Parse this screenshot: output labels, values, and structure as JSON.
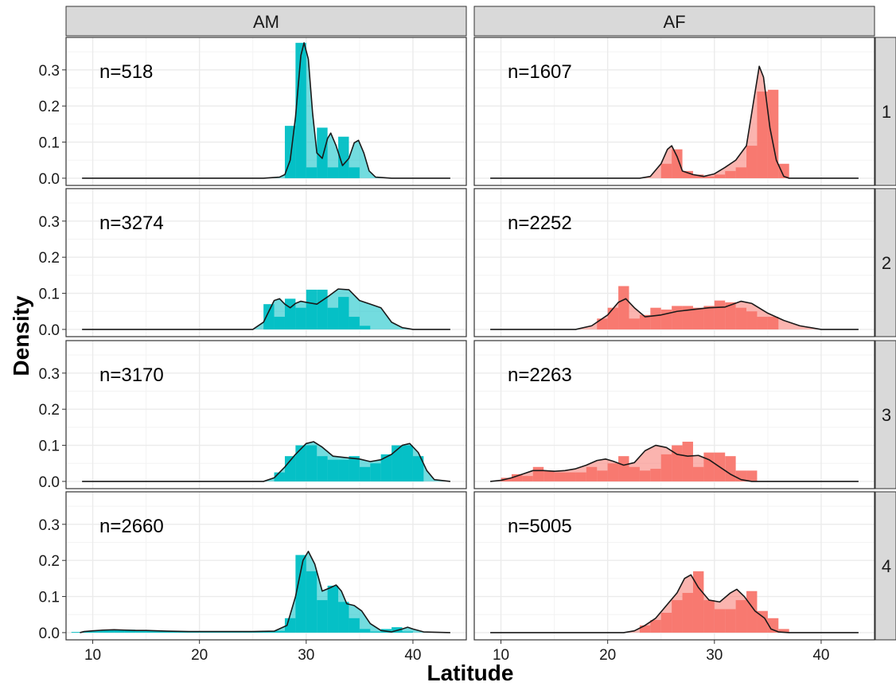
{
  "chart_data": {
    "type": "faceted-histogram-density",
    "xlabel": "Latitude",
    "ylabel": "Density",
    "xlim": [
      7.5,
      45
    ],
    "ylim": [
      -0.02,
      0.39
    ],
    "x_ticks": [
      10,
      20,
      30,
      40
    ],
    "y_ticks": [
      0.0,
      0.1,
      0.2,
      0.3
    ],
    "y_tick_labels": [
      "0.0",
      "0.1",
      "0.2",
      "0.3"
    ],
    "grid": true,
    "bin_width": 1,
    "columns": [
      "AM",
      "AF"
    ],
    "rows": [
      "1",
      "2",
      "3",
      "4"
    ],
    "colors": {
      "AM": "#00BFC4",
      "AF": "#F8766D",
      "density_line": "#1a1a1a",
      "strip_bg": "#d9d9d9",
      "grid": "#ebebeb"
    },
    "panels": [
      {
        "column": "AM",
        "row": "1",
        "label": "n=518",
        "hist_start": 28,
        "hist": [
          0.145,
          0.375,
          0.03,
          0.14,
          0.03,
          0.115,
          0.03
        ],
        "density_range": [
          9,
          43.5
        ],
        "density": [
          [
            9,
            0
          ],
          [
            26,
            0
          ],
          [
            27.5,
            0.003
          ],
          [
            28,
            0.01
          ],
          [
            28.5,
            0.05
          ],
          [
            29,
            0.17
          ],
          [
            29.5,
            0.34
          ],
          [
            29.8,
            0.375
          ],
          [
            30.2,
            0.33
          ],
          [
            30.6,
            0.18
          ],
          [
            31,
            0.07
          ],
          [
            31.5,
            0.055
          ],
          [
            32,
            0.11
          ],
          [
            32.3,
            0.125
          ],
          [
            32.8,
            0.09
          ],
          [
            33.4,
            0.035
          ],
          [
            34,
            0.055
          ],
          [
            34.5,
            0.098
          ],
          [
            34.9,
            0.105
          ],
          [
            35.4,
            0.07
          ],
          [
            35.9,
            0.02
          ],
          [
            36.5,
            0.003
          ],
          [
            38,
            0
          ],
          [
            43.5,
            0
          ]
        ]
      },
      {
        "column": "AF",
        "row": "1",
        "label": "n=1607",
        "hist_start": 25,
        "hist": [
          0.04,
          0.08,
          0.02,
          0.01,
          0.005,
          0.01,
          0.02,
          0.03,
          0.09,
          0.24,
          0.245,
          0.04
        ],
        "density_range": [
          9,
          43.5
        ],
        "density": [
          [
            9,
            0
          ],
          [
            23,
            0
          ],
          [
            24,
            0.005
          ],
          [
            25,
            0.04
          ],
          [
            25.6,
            0.08
          ],
          [
            26,
            0.09
          ],
          [
            26.5,
            0.06
          ],
          [
            27,
            0.02
          ],
          [
            28,
            0.01
          ],
          [
            29,
            0.005
          ],
          [
            30,
            0.012
          ],
          [
            31,
            0.03
          ],
          [
            32,
            0.05
          ],
          [
            33,
            0.09
          ],
          [
            33.6,
            0.2
          ],
          [
            34.2,
            0.31
          ],
          [
            34.6,
            0.28
          ],
          [
            35.2,
            0.14
          ],
          [
            35.8,
            0.05
          ],
          [
            36.5,
            0.005
          ],
          [
            37,
            0
          ],
          [
            43.5,
            0
          ]
        ]
      },
      {
        "column": "AM",
        "row": "2",
        "label": "n=3274",
        "hist_start": 26,
        "hist": [
          0.07,
          0.035,
          0.085,
          0.06,
          0.11,
          0.11,
          0.06,
          0.09,
          0.035,
          0.01
        ],
        "density_range": [
          9,
          43.5
        ],
        "density": [
          [
            9,
            0
          ],
          [
            25,
            0
          ],
          [
            26,
            0.02
          ],
          [
            26.5,
            0.05
          ],
          [
            27,
            0.08
          ],
          [
            27.5,
            0.085
          ],
          [
            28,
            0.07
          ],
          [
            28.5,
            0.06
          ],
          [
            29,
            0.072
          ],
          [
            29.5,
            0.078
          ],
          [
            30,
            0.075
          ],
          [
            31,
            0.07
          ],
          [
            32,
            0.09
          ],
          [
            33,
            0.112
          ],
          [
            34,
            0.11
          ],
          [
            35,
            0.08
          ],
          [
            36,
            0.07
          ],
          [
            37,
            0.06
          ],
          [
            38,
            0.02
          ],
          [
            39,
            0.005
          ],
          [
            40,
            0
          ],
          [
            43.5,
            0
          ]
        ]
      },
      {
        "column": "AF",
        "row": "2",
        "label": "n=2252",
        "hist_start": 19,
        "hist": [
          0.03,
          0.06,
          0.12,
          0.03,
          0.04,
          0.06,
          0.055,
          0.065,
          0.065,
          0.06,
          0.065,
          0.08,
          0.075,
          0.06,
          0.05,
          0.035,
          0.035
        ],
        "density_range": [
          9,
          43.5
        ],
        "density": [
          [
            9,
            0
          ],
          [
            17,
            0
          ],
          [
            18.5,
            0.01
          ],
          [
            20,
            0.04
          ],
          [
            21,
            0.075
          ],
          [
            21.7,
            0.085
          ],
          [
            22.5,
            0.06
          ],
          [
            23.5,
            0.035
          ],
          [
            25,
            0.04
          ],
          [
            26.5,
            0.05
          ],
          [
            28,
            0.055
          ],
          [
            29.5,
            0.06
          ],
          [
            31,
            0.062
          ],
          [
            32.5,
            0.078
          ],
          [
            33.5,
            0.072
          ],
          [
            35,
            0.045
          ],
          [
            36.5,
            0.025
          ],
          [
            38,
            0.01
          ],
          [
            40,
            0
          ],
          [
            43.5,
            0
          ]
        ]
      },
      {
        "column": "AM",
        "row": "3",
        "label": "n=3170",
        "hist_start": 27,
        "hist": [
          0.025,
          0.07,
          0.1,
          0.1,
          0.07,
          0.06,
          0.06,
          0.07,
          0.04,
          0.05,
          0.075,
          0.1,
          0.1,
          0.07
        ],
        "density_range": [
          9,
          43.5
        ],
        "density": [
          [
            9,
            0
          ],
          [
            26,
            0
          ],
          [
            27,
            0.01
          ],
          [
            28,
            0.04
          ],
          [
            29,
            0.075
          ],
          [
            30,
            0.105
          ],
          [
            30.7,
            0.11
          ],
          [
            31.5,
            0.095
          ],
          [
            32.5,
            0.07
          ],
          [
            34,
            0.065
          ],
          [
            35,
            0.062
          ],
          [
            36,
            0.055
          ],
          [
            37,
            0.06
          ],
          [
            38,
            0.075
          ],
          [
            39,
            0.1
          ],
          [
            39.7,
            0.105
          ],
          [
            40.5,
            0.08
          ],
          [
            41.3,
            0.03
          ],
          [
            42,
            0.005
          ],
          [
            43.5,
            0
          ]
        ]
      },
      {
        "column": "AF",
        "row": "3",
        "label": "n=2263",
        "hist_start": 10,
        "hist": [
          0.01,
          0.02,
          0.015,
          0.04,
          0.03,
          0.025,
          0.025,
          0.025,
          0.04,
          0.03,
          0.05,
          0.07,
          0.04,
          0.03,
          0.035,
          0.075,
          0.1,
          0.11,
          0.04,
          0.08,
          0.08,
          0.07,
          0.03,
          0.03
        ],
        "density_range": [
          9,
          43.5
        ],
        "density": [
          [
            9,
            0
          ],
          [
            10,
            0.003
          ],
          [
            11,
            0.01
          ],
          [
            12,
            0.02
          ],
          [
            13,
            0.03
          ],
          [
            14,
            0.03
          ],
          [
            15,
            0.028
          ],
          [
            16,
            0.03
          ],
          [
            17,
            0.035
          ],
          [
            18,
            0.045
          ],
          [
            19,
            0.058
          ],
          [
            19.8,
            0.062
          ],
          [
            20.5,
            0.056
          ],
          [
            21.5,
            0.045
          ],
          [
            22.5,
            0.052
          ],
          [
            23.5,
            0.085
          ],
          [
            24.5,
            0.1
          ],
          [
            25.5,
            0.094
          ],
          [
            26.5,
            0.075
          ],
          [
            27.5,
            0.07
          ],
          [
            28.5,
            0.072
          ],
          [
            29.5,
            0.06
          ],
          [
            30.5,
            0.04
          ],
          [
            31.5,
            0.02
          ],
          [
            32.5,
            0.005
          ],
          [
            33.5,
            0
          ],
          [
            43.5,
            0
          ]
        ]
      },
      {
        "column": "AM",
        "row": "4",
        "label": "n=2660",
        "hist_start": 8,
        "hist": [
          0.002,
          0.003,
          0.005,
          0.008,
          0.007,
          0.008,
          0.006,
          0.005,
          0.005,
          0.004,
          0.003,
          0.004,
          0.003,
          0.003,
          0.003,
          0.003,
          0.003,
          0.004,
          0.004,
          0.005,
          0.04,
          0.215,
          0.17,
          0.09,
          0.13,
          0.085,
          0.04,
          0.01,
          0.003,
          0.01,
          0.015,
          0.003
        ],
        "density_range": [
          8.8,
          43.5
        ],
        "density": [
          [
            8.8,
            0
          ],
          [
            9.2,
            0.003
          ],
          [
            10,
            0.005
          ],
          [
            11,
            0.007
          ],
          [
            12,
            0.008
          ],
          [
            13,
            0.007
          ],
          [
            14,
            0.006
          ],
          [
            15,
            0.006
          ],
          [
            17,
            0.004
          ],
          [
            19,
            0.003
          ],
          [
            21,
            0.003
          ],
          [
            23,
            0.003
          ],
          [
            25,
            0.003
          ],
          [
            27,
            0.004
          ],
          [
            28.2,
            0.02
          ],
          [
            29,
            0.1
          ],
          [
            29.7,
            0.2
          ],
          [
            30.2,
            0.225
          ],
          [
            30.8,
            0.19
          ],
          [
            31.5,
            0.115
          ],
          [
            32.3,
            0.125
          ],
          [
            32.8,
            0.132
          ],
          [
            33.3,
            0.115
          ],
          [
            33.8,
            0.08
          ],
          [
            34.5,
            0.075
          ],
          [
            35.2,
            0.06
          ],
          [
            36,
            0.025
          ],
          [
            37,
            0.006
          ],
          [
            38,
            0.002
          ],
          [
            39,
            0.01
          ],
          [
            39.5,
            0.015
          ],
          [
            40,
            0.01
          ],
          [
            41,
            0.002
          ],
          [
            43.5,
            0
          ]
        ]
      },
      {
        "column": "AF",
        "row": "4",
        "label": "n=5005",
        "hist_start": 23,
        "hist": [
          0.02,
          0.035,
          0.055,
          0.09,
          0.11,
          0.17,
          0.09,
          0.065,
          0.065,
          0.09,
          0.115,
          0.06,
          0.04,
          0.01
        ],
        "density_range": [
          9,
          43.5
        ],
        "density": [
          [
            9,
            0
          ],
          [
            21.5,
            0
          ],
          [
            22.5,
            0.005
          ],
          [
            23.5,
            0.02
          ],
          [
            24.5,
            0.04
          ],
          [
            25.5,
            0.075
          ],
          [
            26.5,
            0.11
          ],
          [
            27.2,
            0.15
          ],
          [
            27.8,
            0.16
          ],
          [
            28.5,
            0.125
          ],
          [
            29.5,
            0.09
          ],
          [
            30.5,
            0.085
          ],
          [
            31.5,
            0.11
          ],
          [
            32.1,
            0.12
          ],
          [
            32.8,
            0.1
          ],
          [
            33.8,
            0.06
          ],
          [
            34.7,
            0.04
          ],
          [
            35.3,
            0.01
          ],
          [
            36,
            0.002
          ],
          [
            37,
            0
          ],
          [
            43.5,
            0
          ]
        ]
      }
    ]
  }
}
